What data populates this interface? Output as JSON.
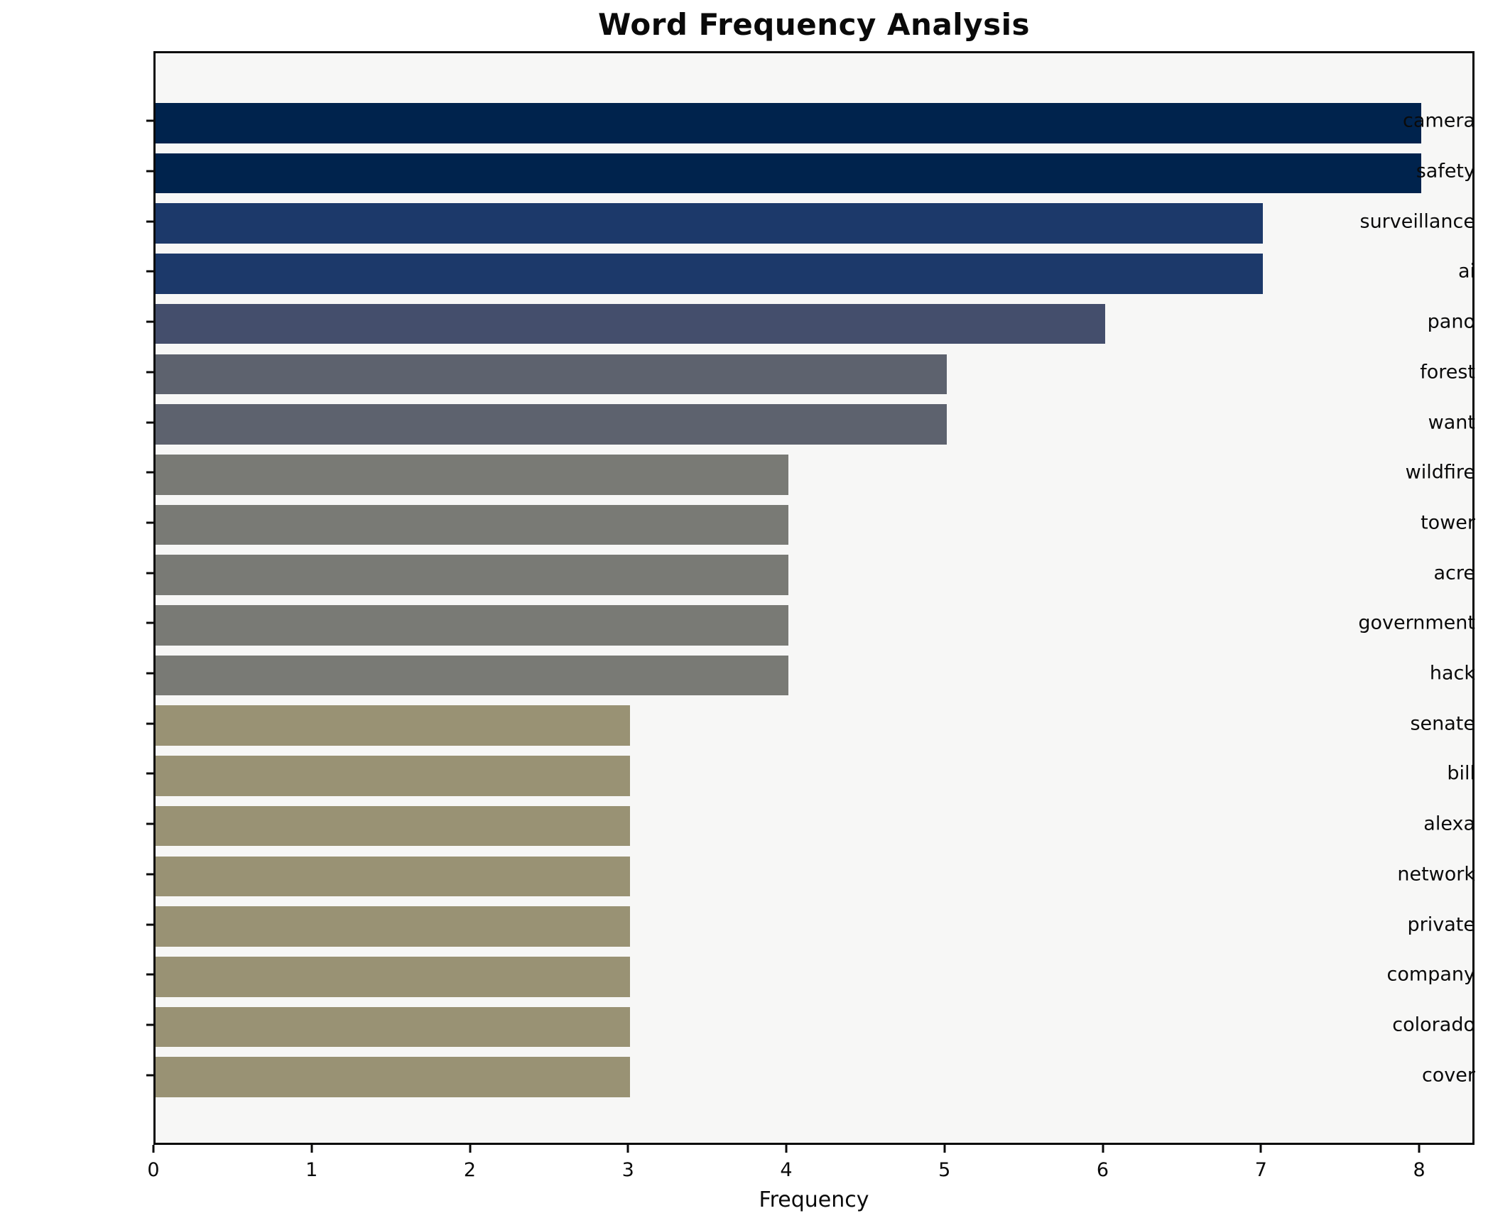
{
  "chart_data": {
    "type": "bar",
    "orientation": "horizontal",
    "title": "Word Frequency Analysis",
    "xlabel": "Frequency",
    "ylabel": "",
    "categories": [
      "camera",
      "safety",
      "surveillance",
      "ai",
      "pano",
      "forest",
      "want",
      "wildfire",
      "tower",
      "acre",
      "government",
      "hack",
      "senate",
      "bill",
      "alexa",
      "network",
      "private",
      "company",
      "colorado",
      "cover"
    ],
    "values": [
      8,
      8,
      7,
      7,
      6,
      5,
      5,
      4,
      4,
      4,
      4,
      4,
      3,
      3,
      3,
      3,
      3,
      3,
      3,
      3
    ],
    "bar_colors": [
      "#00234d",
      "#00234d",
      "#1c396a",
      "#1c396a",
      "#444e6c",
      "#5d626e",
      "#5d626e",
      "#797a75",
      "#797a75",
      "#797a75",
      "#797a75",
      "#797a75",
      "#999274",
      "#999274",
      "#999274",
      "#999274",
      "#999274",
      "#999274",
      "#999274",
      "#999274"
    ],
    "xlim": [
      0,
      8.35
    ],
    "x_ticks": [
      0,
      1,
      2,
      3,
      4,
      5,
      6,
      7,
      8
    ],
    "grid": false,
    "legend": null,
    "bar_height_fraction": 0.8,
    "plot_bg": "#f7f7f6",
    "fig_bg": "#ffffff",
    "spine_color": "#0a0a0a"
  }
}
